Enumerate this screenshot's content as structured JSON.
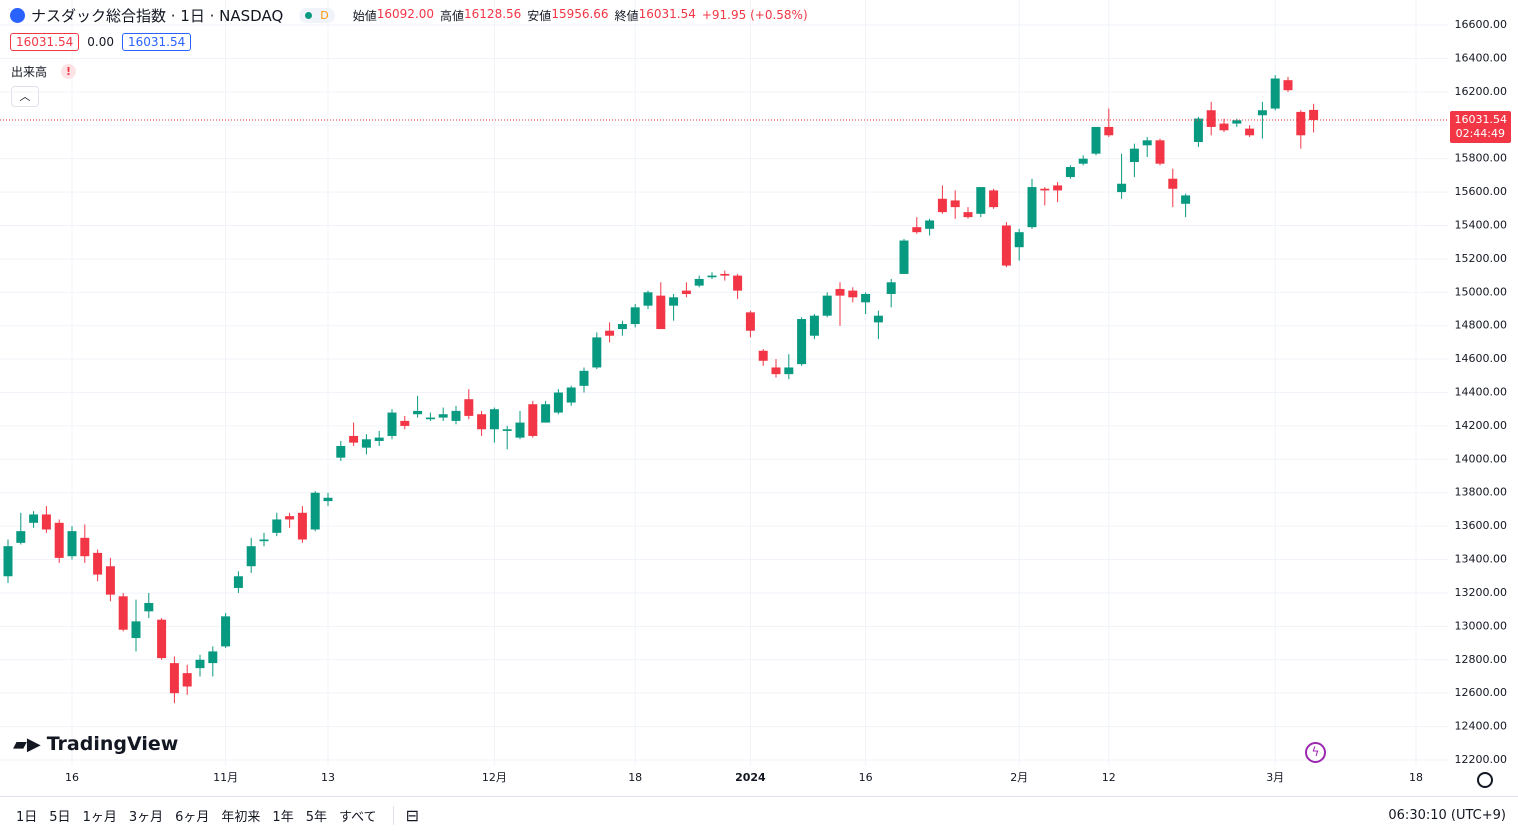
{
  "header": {
    "symbol": "ナスダック総合指数 · 1日 · NASDAQ",
    "interval_badge": "D",
    "ohlc": [
      {
        "label": "始値",
        "value": "16092.00"
      },
      {
        "label": "高値",
        "value": "16128.56"
      },
      {
        "label": "安値",
        "value": "15956.66"
      },
      {
        "label": "終値",
        "value": "16031.54"
      }
    ],
    "change": "+91.95 (+0.58%)",
    "bid": "16031.54",
    "spread": "0.00",
    "ask": "16031.54",
    "volume_label": "出来高"
  },
  "watermark": "TradingView",
  "toolbar": {
    "ranges": [
      "1日",
      "5日",
      "1ヶ月",
      "3ヶ月",
      "6ヶ月",
      "年初来",
      "1年",
      "5年",
      "すべて"
    ],
    "time": "06:30:10 (UTC+9)"
  },
  "chart_data": {
    "type": "candlestick",
    "up_color": "#089981",
    "down_color": "#f23645",
    "grid": true,
    "ylim": [
      12170,
      16750
    ],
    "yticks": [
      {
        "value": 12200,
        "label": "12200.00"
      },
      {
        "value": 12400,
        "label": "12400.00"
      },
      {
        "value": 12600,
        "label": "12600.00"
      },
      {
        "value": 12800,
        "label": "12800.00"
      },
      {
        "value": 13000,
        "label": "13000.00"
      },
      {
        "value": 13200,
        "label": "13200.00"
      },
      {
        "value": 13400,
        "label": "13400.00"
      },
      {
        "value": 13600,
        "label": "13600.00"
      },
      {
        "value": 13800,
        "label": "13800.00"
      },
      {
        "value": 14000,
        "label": "14000.00"
      },
      {
        "value": 14200,
        "label": "14200.00"
      },
      {
        "value": 14400,
        "label": "14400.00"
      },
      {
        "value": 14600,
        "label": "14600.00"
      },
      {
        "value": 14800,
        "label": "14800.00"
      },
      {
        "value": 15000,
        "label": "15000.00"
      },
      {
        "value": 15200,
        "label": "15200.00"
      },
      {
        "value": 15400,
        "label": "15400.00"
      },
      {
        "value": 15600,
        "label": "15600.00"
      },
      {
        "value": 15800,
        "label": "15800.00"
      },
      {
        "value": 16000,
        "label": "16000.00"
      },
      {
        "value": 16200,
        "label": "16200.00"
      },
      {
        "value": 16400,
        "label": "16400.00"
      },
      {
        "value": 16600,
        "label": "16600.00"
      }
    ],
    "last_price": {
      "value": 16031.54,
      "label": "16031.54"
    },
    "countdown": "02:44:49",
    "categories": [
      null,
      null,
      null,
      null,
      null,
      "16",
      null,
      null,
      null,
      null,
      null,
      null,
      null,
      null,
      null,
      null,
      null,
      "11月",
      null,
      null,
      null,
      null,
      null,
      null,
      null,
      "13",
      null,
      null,
      null,
      null,
      null,
      null,
      null,
      null,
      null,
      null,
      null,
      null,
      "12月",
      null,
      null,
      null,
      null,
      null,
      null,
      null,
      null,
      null,
      null,
      "18",
      null,
      null,
      null,
      null,
      null,
      null,
      null,
      null,
      "2024",
      null,
      null,
      null,
      null,
      null,
      null,
      null,
      null,
      "16",
      null,
      null,
      null,
      null,
      null,
      null,
      null,
      null,
      null,
      null,
      null,
      "2月",
      null,
      null,
      null,
      null,
      null,
      null,
      "12",
      null,
      null,
      null,
      null,
      null,
      null,
      null,
      null,
      null,
      null,
      null,
      null,
      "3月",
      null,
      null,
      null,
      null,
      null,
      null,
      null,
      null,
      null,
      null,
      "18"
    ],
    "open": [
      13300,
      13500,
      13620,
      13670,
      13620,
      13420,
      13530,
      13440,
      13360,
      13180,
      12930,
      13090,
      13040,
      12780,
      12720,
      12750,
      12780,
      12880,
      13230,
      13360,
      13510,
      13560,
      13660,
      13680,
      13580,
      13750,
      14010,
      14140,
      14070,
      14110,
      14140,
      14230,
      14270,
      14240,
      14250,
      14230,
      14360,
      14270,
      14180,
      14170,
      14130,
      14330,
      14220,
      14280,
      14340,
      14440,
      14550,
      14770,
      14780,
      14810,
      14920,
      14980,
      14920,
      15010,
      15040,
      15090,
      15110,
      15100,
      14880,
      14650,
      14550,
      14510,
      14570,
      14740,
      14860,
      15020,
      15010,
      14940,
      14820,
      14990,
      15110,
      15390,
      15380,
      15560,
      15550,
      15480,
      15470,
      15610,
      15400,
      15270,
      15390,
      15620,
      15640,
      15690,
      15770,
      15830,
      15990,
      15600,
      15780,
      15880,
      15910,
      15680,
      15530,
      15900,
      16090,
      16010,
      16010,
      15980,
      16060,
      16100,
      16270,
      16080,
      16092,
      null,
      null,
      null,
      null,
      null,
      null,
      null,
      null
    ],
    "high": [
      13520,
      13680,
      13690,
      13720,
      13640,
      13600,
      13610,
      13460,
      13410,
      13200,
      13160,
      13200,
      13050,
      12820,
      12770,
      12830,
      12880,
      13080,
      13330,
      13530,
      13560,
      13680,
      13680,
      13720,
      13810,
      13800,
      14110,
      14220,
      14150,
      14170,
      14300,
      14260,
      14380,
      14280,
      14310,
      14320,
      14420,
      14290,
      14310,
      14200,
      14290,
      14350,
      14350,
      14420,
      14440,
      14550,
      14760,
      14820,
      14830,
      14930,
      15010,
      15060,
      14990,
      15060,
      15100,
      15120,
      15130,
      15110,
      14890,
      14660,
      14600,
      14630,
      14850,
      14870,
      15000,
      15060,
      15030,
      15000,
      14890,
      15080,
      15320,
      15450,
      15440,
      15640,
      15610,
      15510,
      15630,
      15620,
      15420,
      15380,
      15680,
      15630,
      15660,
      15760,
      15820,
      15990,
      16100,
      15830,
      15890,
      15930,
      15920,
      15740,
      15590,
      16050,
      16140,
      16040,
      16040,
      16000,
      16140,
      16300,
      16290,
      16090,
      16128.56,
      null,
      null,
      null,
      null,
      null,
      null,
      null,
      null
    ],
    "low": [
      13260,
      13490,
      13590,
      13560,
      13380,
      13400,
      13380,
      13270,
      13150,
      12970,
      12850,
      13050,
      12800,
      12540,
      12590,
      12700,
      12700,
      12870,
      13200,
      13320,
      13480,
      13540,
      13590,
      13500,
      13570,
      13720,
      13990,
      14080,
      14030,
      14080,
      14120,
      14180,
      14250,
      14230,
      14230,
      14210,
      14240,
      14140,
      14100,
      14060,
      14120,
      14130,
      14220,
      14270,
      14320,
      14400,
      14540,
      14700,
      14740,
      14790,
      14900,
      14780,
      14830,
      14970,
      15030,
      15080,
      15070,
      14960,
      14730,
      14560,
      14490,
      14480,
      14560,
      14720,
      14850,
      14800,
      14940,
      14870,
      14720,
      14910,
      15110,
      15350,
      15340,
      15470,
      15440,
      15440,
      15450,
      15500,
      15150,
      15190,
      15380,
      15520,
      15540,
      15680,
      15760,
      15820,
      15930,
      15560,
      15690,
      15810,
      15760,
      15510,
      15450,
      15870,
      15940,
      15960,
      15990,
      15930,
      15920,
      16090,
      16200,
      15860,
      15956.66,
      null,
      null,
      null,
      null,
      null,
      null,
      null,
      null
    ],
    "close": [
      13480,
      13570,
      13670,
      13580,
      13410,
      13570,
      13420,
      13310,
      13190,
      12980,
      13030,
      13140,
      12810,
      12600,
      12640,
      12800,
      12850,
      13060,
      13300,
      13480,
      13520,
      13640,
      13640,
      13520,
      13800,
      13770,
      14080,
      14100,
      14120,
      14130,
      14280,
      14200,
      14290,
      14250,
      14270,
      14290,
      14260,
      14180,
      14300,
      14180,
      14220,
      14140,
      14330,
      14400,
      14430,
      14530,
      14730,
      14740,
      14810,
      14910,
      15000,
      14780,
      14970,
      14990,
      15080,
      15100,
      15100,
      15010,
      14770,
      14590,
      14510,
      14550,
      14840,
      14860,
      14980,
      14980,
      14970,
      14990,
      14860,
      15060,
      15310,
      15360,
      15430,
      15480,
      15510,
      15450,
      15630,
      15510,
      15160,
      15360,
      15630,
      15610,
      15610,
      15750,
      15800,
      15990,
      15940,
      15650,
      15860,
      15910,
      15770,
      15620,
      15580,
      16040,
      15990,
      15970,
      16030,
      15940,
      16090,
      16280,
      16210,
      15940,
      16031.54,
      null,
      null,
      null,
      null,
      null,
      null,
      null,
      null
    ]
  }
}
